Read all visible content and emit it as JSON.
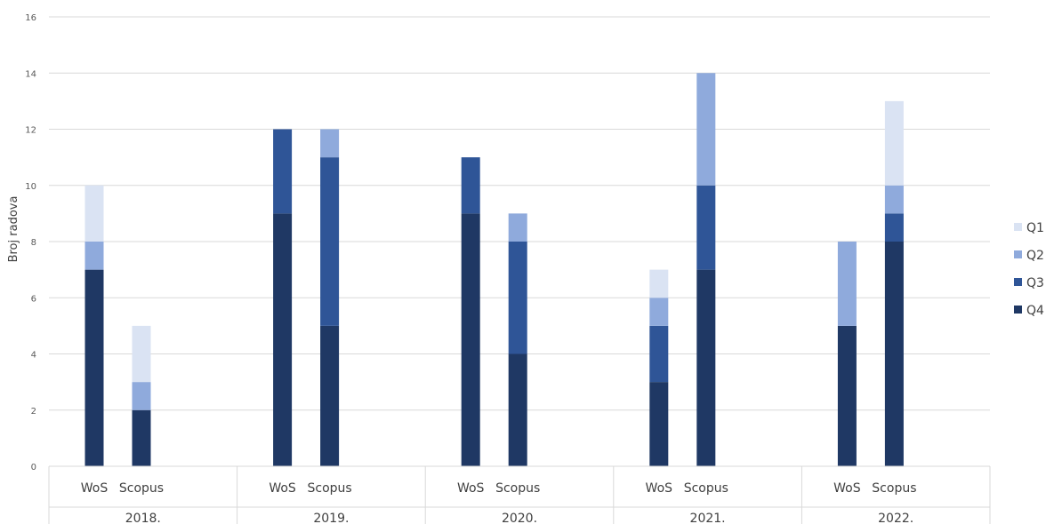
{
  "chart_data": {
    "type": "bar",
    "stacked": true,
    "ylabel": "Broj radova",
    "ylim": [
      0,
      16
    ],
    "yticks": [
      0,
      2,
      4,
      6,
      8,
      10,
      12,
      14,
      16
    ],
    "grid": true,
    "legend_position": "right",
    "groups": [
      "2018.",
      "2019.",
      "2020.",
      "2021.",
      "2022."
    ],
    "sources": [
      "WoS",
      "Scopus"
    ],
    "colors": {
      "Q4": "#1f3864",
      "Q3": "#2f5597",
      "Q2": "#8faadc",
      "Q1": "#dae3f3"
    },
    "legend_order": [
      "Q1",
      "Q2",
      "Q3",
      "Q4"
    ],
    "series": [
      {
        "name": "Q4",
        "values": [
          7,
          2,
          9,
          5,
          9,
          4,
          3,
          7,
          5,
          8
        ]
      },
      {
        "name": "Q3",
        "values": [
          0,
          0,
          3,
          6,
          2,
          4,
          2,
          3,
          0,
          1
        ]
      },
      {
        "name": "Q2",
        "values": [
          1,
          1,
          0,
          1,
          0,
          1,
          1,
          4,
          3,
          1
        ]
      },
      {
        "name": "Q1",
        "values": [
          2,
          2,
          0,
          0,
          0,
          0,
          1,
          0,
          0,
          3
        ]
      }
    ]
  }
}
